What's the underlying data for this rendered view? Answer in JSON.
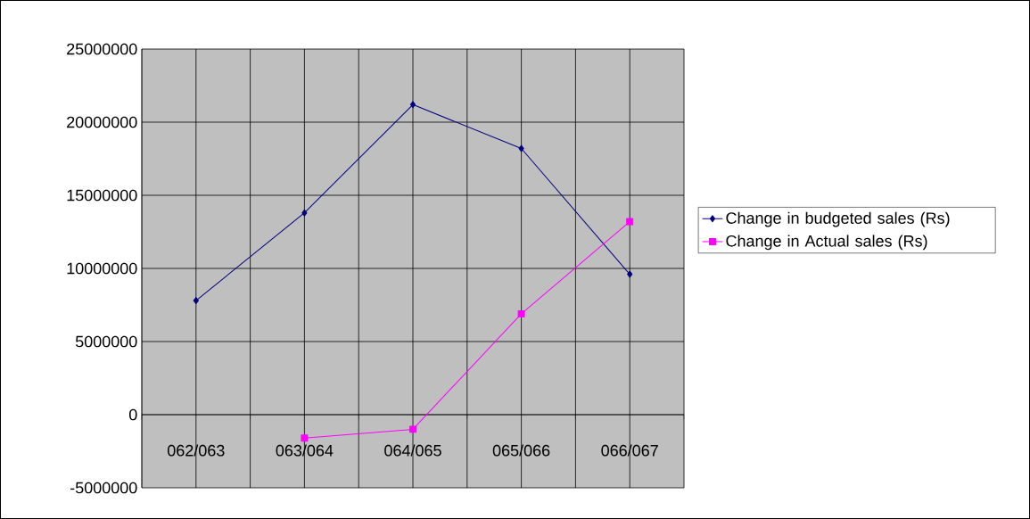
{
  "chart_data": {
    "type": "line",
    "categories": [
      "062/063",
      "063/064",
      "064/065",
      "065/066",
      "066/067"
    ],
    "series": [
      {
        "name": "Change in budgeted sales (Rs)",
        "color": "#000080",
        "marker": "diamond",
        "values": [
          7800000,
          13800000,
          21200000,
          18200000,
          9600000
        ]
      },
      {
        "name": "Change in Actual sales (Rs)",
        "color": "#ff00ff",
        "marker": "square",
        "values": [
          null,
          -1600000,
          -1000000,
          6900000,
          13200000
        ]
      }
    ],
    "ylim": [
      -5000000,
      25000000
    ],
    "yticks": [
      -5000000,
      0,
      5000000,
      10000000,
      15000000,
      20000000,
      25000000
    ],
    "grid": true,
    "legend": "right"
  }
}
